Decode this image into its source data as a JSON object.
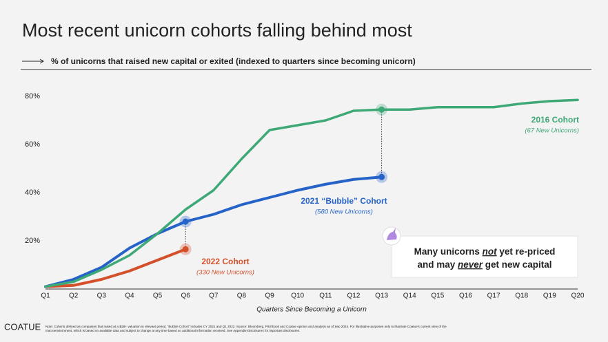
{
  "title": "Most recent unicorn cohorts falling behind most",
  "subtitle": "% of unicorns that raised new capital or exited (indexed to quarters since becoming unicorn)",
  "brand": "COATUE",
  "note_lines": [
    "Note: Cohorts defined as companies that raised at a $1B+ valuation in relevant period. “Bubble Cohort” includes CY 2021 and Q1 2022. Source: Bloomberg, Pitchbook and Coatue opinion and analysis as of Sep 2024. For illustrative purposes only to illustrate Coatue’s current view of the",
    "macroenvironment, which is based on available data and subject to change at any time based on additional information received. See Appendix-Disclosures for important disclosures."
  ],
  "chart_data": {
    "type": "line",
    "xlabel": "Quarters Since Becoming a Unicorn",
    "categories": [
      "Q1",
      "Q2",
      "Q3",
      "Q4",
      "Q5",
      "Q6",
      "Q7",
      "Q8",
      "Q9",
      "Q10",
      "Q11",
      "Q12",
      "Q13",
      "Q14",
      "Q15",
      "Q16",
      "Q17",
      "Q18",
      "Q19",
      "Q20"
    ],
    "series": [
      {
        "name": "2016 Cohort",
        "detail": "(67 New Unicorns)",
        "color": "#3ea877",
        "values": [
          1,
          3,
          8,
          14,
          23,
          33,
          41,
          54,
          66,
          68,
          70,
          74,
          74.5,
          74.5,
          75.5,
          75.5,
          75.5,
          77,
          78,
          78.5
        ]
      },
      {
        "name": "2021 “Bubble” Cohort",
        "detail": "(580 New Unicorns)",
        "color": "#2563c9",
        "values": [
          1,
          4,
          9,
          17,
          23,
          28,
          31,
          35,
          38,
          41,
          43.5,
          45.5,
          46.5,
          null,
          null,
          null,
          null,
          null,
          null,
          null
        ]
      },
      {
        "name": "2022 Cohort",
        "detail": "(330 New Unicorns)",
        "color": "#d4502a",
        "values": [
          1,
          1.5,
          4,
          7.5,
          12,
          16.5,
          null,
          null,
          null,
          null,
          null,
          null,
          null,
          null,
          null,
          null,
          null,
          null,
          null,
          null
        ]
      }
    ],
    "highlights": [
      {
        "series": 1,
        "index": 5
      },
      {
        "series": 2,
        "index": 5
      },
      {
        "series": 0,
        "index": 12
      },
      {
        "series": 1,
        "index": 12
      }
    ],
    "ylim": [
      0,
      80
    ],
    "yticks": [
      {
        "value": 20,
        "label": "20%"
      },
      {
        "value": 40,
        "label": "40%"
      },
      {
        "value": 60,
        "label": "60%"
      },
      {
        "value": 80,
        "label": "80%"
      }
    ],
    "callout": [
      [
        {
          "text": "Many unicorns "
        },
        {
          "text": "not",
          "emphasis": true
        },
        {
          "text": " yet re-priced"
        }
      ],
      [
        {
          "text": "and may "
        },
        {
          "text": "never",
          "emphasis": true
        },
        {
          "text": " get new capital"
        }
      ]
    ]
  }
}
